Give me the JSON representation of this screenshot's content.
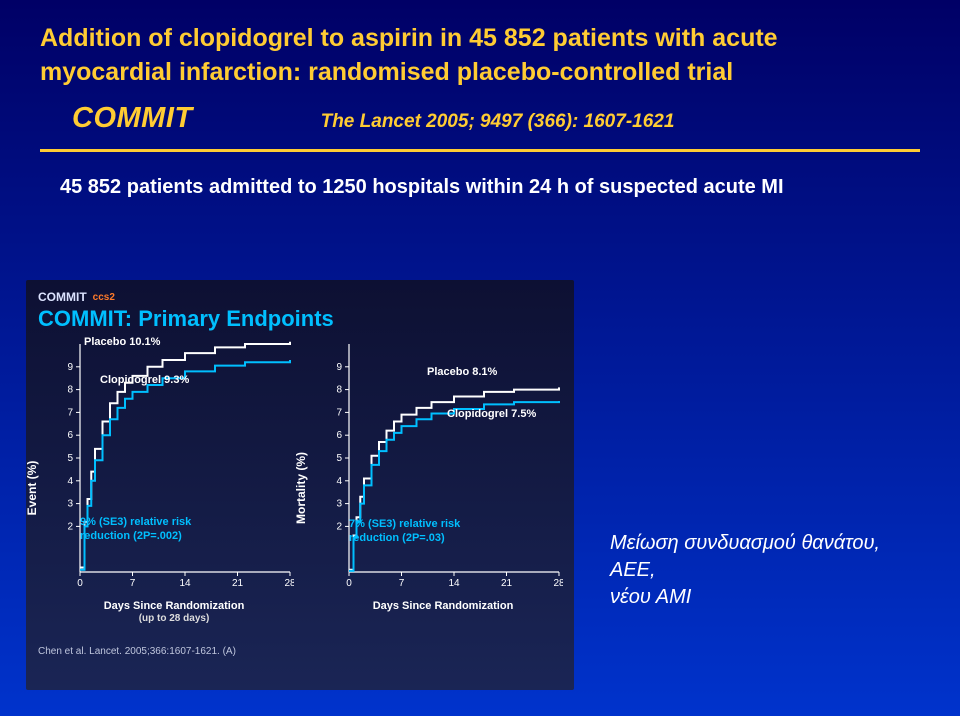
{
  "header": {
    "title_line1": "Addition of clopidogrel to aspirin in 45 852 patients with acute",
    "title_line2": "myocardial infarction: randomised placebo-controlled trial",
    "commit": "COMMIT",
    "citation": "The Lancet 2005; 9497 (366): 1607-1621"
  },
  "subtitle": "45 852 patients admitted to 1250 hospitals within 24 h of suspected acute MI",
  "chart": {
    "brand_commit": "COMMIT",
    "brand_ccs": "ccs2",
    "title": "COMMIT: Primary Endpoints",
    "source": "Chen et al. Lancet. 2005;366:1607-1621. (A)",
    "colors": {
      "placebo": "#ffffff",
      "clopidogrel": "#00bfff",
      "axis": "#ffffff",
      "panel_bg": "transparent"
    },
    "line_width": 2,
    "panels": [
      {
        "ylabel": "Event (%)",
        "xlabel": "Days Since Randomization",
        "xlabel_sub": "(up to 28 days)",
        "ylim": [
          0,
          10
        ],
        "yticks": [
          2,
          3,
          4,
          5,
          6,
          7,
          8,
          9
        ],
        "xlim": [
          0,
          28
        ],
        "xticks": [
          0,
          7,
          14,
          21,
          28
        ],
        "placebo_label": "Placebo 10.1%",
        "clopidogrel_label": "Clopidogrel 9.3%",
        "risk_text_l1": "9% (SE3) relative risk",
        "risk_text_l2": "reduction (2P=.002)",
        "placebo_series": [
          [
            0,
            0.2
          ],
          [
            0.6,
            2.2
          ],
          [
            1,
            3.2
          ],
          [
            1.5,
            4.4
          ],
          [
            2,
            5.4
          ],
          [
            3,
            6.6
          ],
          [
            4,
            7.4
          ],
          [
            5,
            7.9
          ],
          [
            6,
            8.3
          ],
          [
            7,
            8.6
          ],
          [
            9,
            9.0
          ],
          [
            11,
            9.3
          ],
          [
            14,
            9.6
          ],
          [
            18,
            9.85
          ],
          [
            22,
            10.0
          ],
          [
            28,
            10.1
          ]
        ],
        "clopidogrel_series": [
          [
            0,
            0.1
          ],
          [
            0.6,
            2.0
          ],
          [
            1,
            2.9
          ],
          [
            1.5,
            4.0
          ],
          [
            2,
            4.9
          ],
          [
            3,
            6.0
          ],
          [
            4,
            6.7
          ],
          [
            5,
            7.2
          ],
          [
            6,
            7.6
          ],
          [
            7,
            7.9
          ],
          [
            9,
            8.2
          ],
          [
            11,
            8.5
          ],
          [
            14,
            8.8
          ],
          [
            18,
            9.05
          ],
          [
            22,
            9.2
          ],
          [
            28,
            9.3
          ]
        ]
      },
      {
        "ylabel": "Mortality (%)",
        "xlabel": "Days Since Randomization",
        "xlabel_sub": "",
        "ylim": [
          0,
          10
        ],
        "yticks": [
          2,
          3,
          4,
          5,
          6,
          7,
          8,
          9
        ],
        "xlim": [
          0,
          28
        ],
        "xticks": [
          0,
          7,
          14,
          21,
          28
        ],
        "placebo_label": "Placebo 8.1%",
        "clopidogrel_label": "Clopidogrel 7.5%",
        "risk_text_l1": "7% (SE3) relative risk",
        "risk_text_l2": "reduction (2P=.03)",
        "placebo_series": [
          [
            0,
            0.1
          ],
          [
            0.6,
            1.6
          ],
          [
            1,
            2.4
          ],
          [
            1.5,
            3.3
          ],
          [
            2,
            4.1
          ],
          [
            3,
            5.1
          ],
          [
            4,
            5.7
          ],
          [
            5,
            6.2
          ],
          [
            6,
            6.6
          ],
          [
            7,
            6.9
          ],
          [
            9,
            7.2
          ],
          [
            11,
            7.45
          ],
          [
            14,
            7.7
          ],
          [
            18,
            7.9
          ],
          [
            22,
            8.0
          ],
          [
            28,
            8.1
          ]
        ],
        "clopidogrel_series": [
          [
            0,
            0.05
          ],
          [
            0.6,
            1.5
          ],
          [
            1,
            2.2
          ],
          [
            1.5,
            3.0
          ],
          [
            2,
            3.8
          ],
          [
            3,
            4.7
          ],
          [
            4,
            5.3
          ],
          [
            5,
            5.8
          ],
          [
            6,
            6.1
          ],
          [
            7,
            6.4
          ],
          [
            9,
            6.7
          ],
          [
            11,
            6.95
          ],
          [
            14,
            7.15
          ],
          [
            18,
            7.35
          ],
          [
            22,
            7.45
          ],
          [
            28,
            7.5
          ]
        ]
      }
    ]
  },
  "greek_note_l1": "Μείωση συνδυασμού θανάτου, ΑΕΕ,",
  "greek_note_l2": "νέου ΑΜΙ"
}
